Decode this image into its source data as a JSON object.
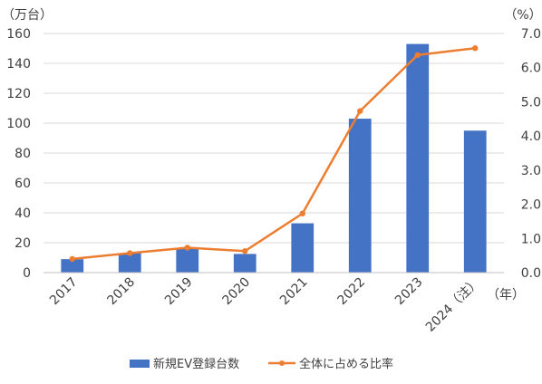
{
  "chart_data": {
    "type": "bar",
    "categories": [
      "2017",
      "2018",
      "2019",
      "2020",
      "2021",
      "2022",
      "2023",
      "2024（注）"
    ],
    "x_unit": "（年）",
    "series": [
      {
        "name": "新規EV登録台数",
        "type": "bar",
        "axis": "left",
        "unit": "（万台）",
        "color": "#4472C4",
        "values": [
          9,
          13,
          16,
          12.5,
          33,
          103,
          153,
          95
        ]
      },
      {
        "name": "全体に占める比率",
        "type": "line",
        "axis": "right",
        "unit": "（%）",
        "color": "#ED7D31",
        "values": [
          0.4,
          0.57,
          0.73,
          0.63,
          1.73,
          4.73,
          6.37,
          6.57
        ]
      }
    ],
    "y_left": {
      "min": 0,
      "max": 160,
      "step": 20,
      "ticks": [
        "0",
        "20",
        "40",
        "60",
        "80",
        "100",
        "120",
        "140",
        "160"
      ]
    },
    "y_right": {
      "min": 0,
      "max": 7,
      "step": 1,
      "ticks": [
        "0.0",
        "1.0",
        "2.0",
        "3.0",
        "4.0",
        "5.0",
        "6.0",
        "7.0"
      ]
    },
    "grid": "horizontal",
    "legend": "bottom"
  }
}
